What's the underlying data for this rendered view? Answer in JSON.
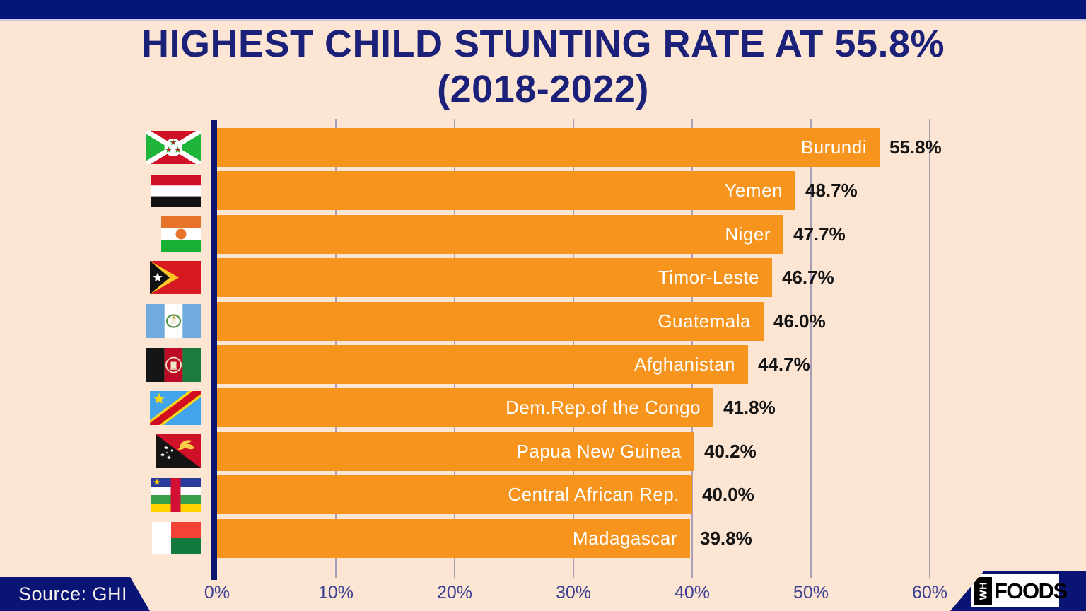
{
  "title": {
    "line1": "HIGHEST CHILD STUNTING RATE AT 55.8%",
    "line2": "(2018-2022)"
  },
  "source": {
    "label": "Source: GHI"
  },
  "logo": {
    "wh": "WH",
    "foods": "FOODS"
  },
  "colors": {
    "background": "#fce5d3",
    "navy": "#0a1474",
    "title_navy": "#1b2178",
    "bar_orange": "#f6941d",
    "gridline": "#a89fb8",
    "tick_label": "#3c4191",
    "value_text": "#141414",
    "country_text": "#ffffff"
  },
  "chart_data": {
    "type": "bar",
    "orientation": "horizontal",
    "title": "HIGHEST CHILD STUNTING RATE AT 55.8% (2018-2022)",
    "source": "GHI",
    "categories": [
      "Burundi",
      "Yemen",
      "Niger",
      "Timor-Leste",
      "Guatemala",
      "Afghanistan",
      "Dem.Rep.of the Congo",
      "Papua New Guinea",
      "Central African Rep.",
      "Madagascar"
    ],
    "values": [
      55.8,
      48.7,
      47.7,
      46.7,
      46.0,
      44.7,
      41.8,
      40.2,
      40.0,
      39.8
    ],
    "value_labels": [
      "55.8%",
      "48.7%",
      "47.7%",
      "46.7%",
      "46.0%",
      "44.7%",
      "41.8%",
      "40.2%",
      "40.0%",
      "39.8%"
    ],
    "flags": [
      "burundi-flag",
      "yemen-flag",
      "niger-flag",
      "timor-leste-flag",
      "guatemala-flag",
      "afghanistan-flag",
      "dr-congo-flag",
      "papua-new-guinea-flag",
      "central-african-republic-flag",
      "madagascar-flag"
    ],
    "x_tick_labels": [
      "0%",
      "10%",
      "20%",
      "30%",
      "40%",
      "50%",
      "60%"
    ],
    "xlim": [
      0,
      60
    ],
    "grid": true,
    "legend": false
  }
}
